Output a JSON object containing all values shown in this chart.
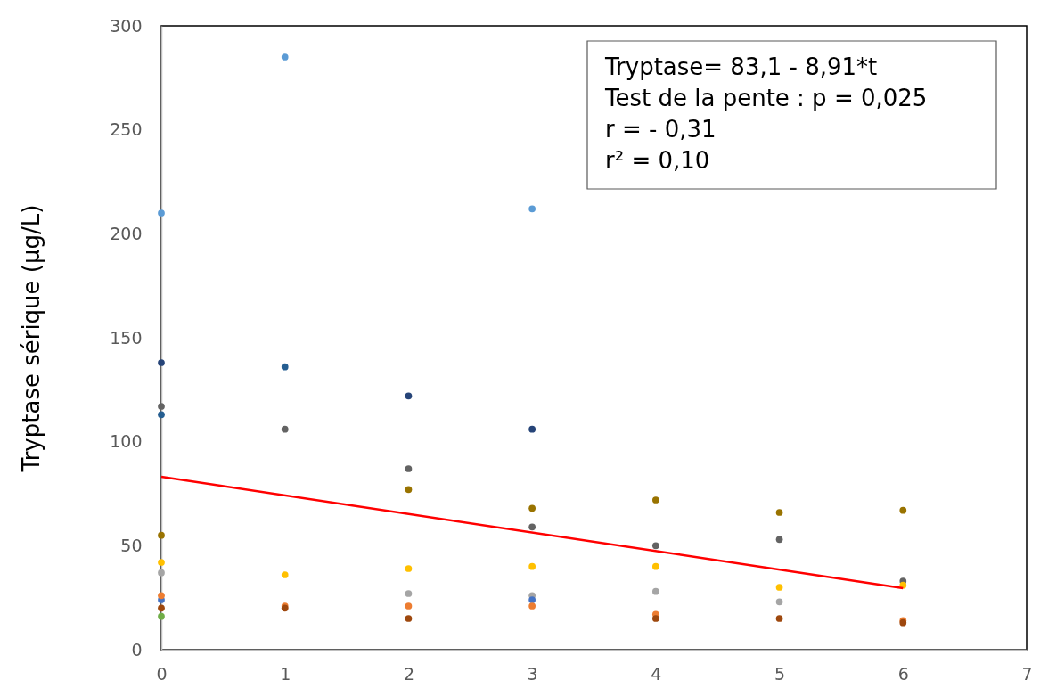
{
  "chart_data": {
    "type": "scatter",
    "ylabel": "Tryptase sérique (µg/L)",
    "xlim": [
      0,
      7
    ],
    "xticks": [
      0,
      1,
      2,
      3,
      4,
      5,
      6,
      7
    ],
    "ylim": [
      0,
      300
    ],
    "yticks": [
      0,
      50,
      100,
      150,
      200,
      250,
      300
    ],
    "marker": "circle",
    "annotations": [
      "Tryptase= 83,1 - 8,91*t",
      "Test de la pente : p = 0,025",
      "r = - 0,31",
      "r² = 0,10"
    ],
    "series": [
      {
        "color": "#5b9bd5",
        "x": [
          0,
          1,
          3
        ],
        "values": [
          210,
          285,
          212
        ]
      },
      {
        "color": "#264478",
        "x": [
          0,
          2,
          3
        ],
        "values": [
          138,
          122,
          106
        ]
      },
      {
        "color": "#255e91",
        "x": [
          0,
          1
        ],
        "values": [
          113,
          136
        ]
      },
      {
        "color": "#636363",
        "x": [
          0,
          1,
          2,
          3,
          4,
          5,
          6
        ],
        "values": [
          117,
          106,
          87,
          59,
          50,
          53,
          33
        ]
      },
      {
        "color": "#997300",
        "x": [
          0,
          2,
          3,
          4,
          5,
          6
        ],
        "values": [
          55,
          77,
          68,
          72,
          66,
          67
        ]
      },
      {
        "color": "#ffc000",
        "x": [
          0,
          1,
          2,
          3,
          4,
          5,
          6
        ],
        "values": [
          42,
          36,
          39,
          40,
          40,
          30,
          31
        ]
      },
      {
        "color": "#a5a5a5",
        "x": [
          0,
          2,
          3,
          4,
          5
        ],
        "values": [
          37,
          27,
          26,
          28,
          23
        ]
      },
      {
        "color": "#4472c4",
        "x": [
          0,
          3
        ],
        "values": [
          24,
          24
        ]
      },
      {
        "color": "#ed7d31",
        "x": [
          0,
          1,
          2,
          3,
          4,
          6
        ],
        "values": [
          26,
          21,
          21,
          21,
          17,
          14
        ]
      },
      {
        "color": "#9e480e",
        "x": [
          0,
          1,
          2,
          4,
          5,
          6
        ],
        "values": [
          20,
          20,
          15,
          15,
          15,
          13
        ]
      },
      {
        "color": "#70ad47",
        "x": [
          0
        ],
        "values": [
          16
        ]
      },
      {
        "type": "line",
        "marker": "none",
        "color": "#ff0000",
        "x": [
          0,
          6
        ],
        "values": [
          83.1,
          29.6
        ]
      }
    ]
  }
}
